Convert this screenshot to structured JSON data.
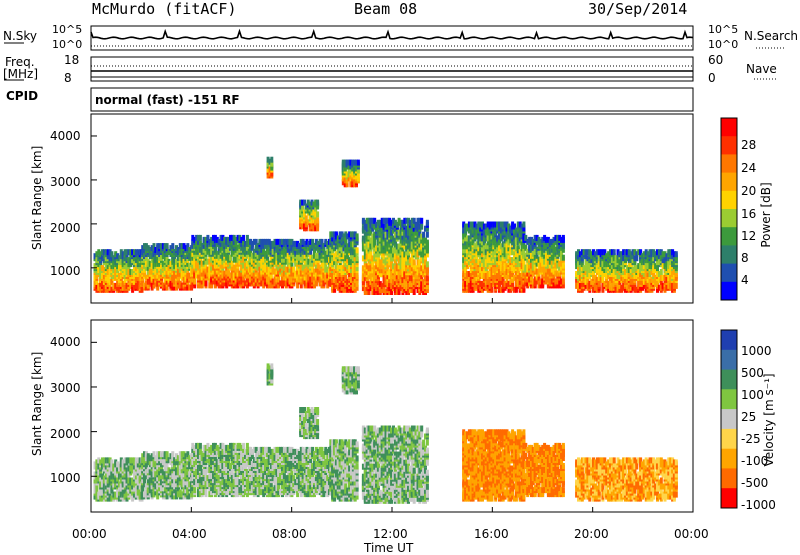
{
  "header": {
    "station": "McMurdo (fitACF)",
    "beam": "Beam 08",
    "date": "30/Sep/2014"
  },
  "summary": {
    "nsky_label": "N.Sky",
    "nsky_ticks": [
      "10^5",
      "10^0"
    ],
    "nsearch_label": "N.Search",
    "nsearch_ticks": [
      "10^5",
      "10^0"
    ],
    "freq_label": "Freq.",
    "freq_unit": "[MHz]",
    "freq_ticks": [
      "18",
      "8"
    ],
    "nave_label": "Nave",
    "nave_ticks": [
      "60",
      "0"
    ],
    "cpid_label": "CPID",
    "mode_text": "normal (fast) -151 RF"
  },
  "chart_data": [
    {
      "type": "heatmap",
      "name": "power-panel",
      "ylabel": "Slant Range [km]",
      "yticks": [
        "4000",
        "3000",
        "2000",
        "1000"
      ],
      "ylim": [
        200,
        4500
      ],
      "xlim": [
        0,
        24
      ],
      "colorbar_label": "Power [dB]",
      "colorbar_ticks": [
        "28",
        "24",
        "20",
        "16",
        "12",
        "8",
        "4"
      ],
      "colorbar_colors": [
        "#ff0000",
        "#ff3000",
        "#ff7700",
        "#ffa500",
        "#ffd200",
        "#9bcc32",
        "#3c9a3c",
        "#2d7f6a",
        "#1f4fb0",
        "#0000ff"
      ]
    },
    {
      "type": "heatmap",
      "name": "velocity-panel",
      "ylabel": "Slant Range [km]",
      "yticks": [
        "4000",
        "3000",
        "2000",
        "1000"
      ],
      "ylim": [
        200,
        4500
      ],
      "xlim": [
        0,
        24
      ],
      "colorbar_label": "Velocity [m s⁻¹]",
      "colorbar_ticks": [
        "1000",
        "500",
        "100",
        "25",
        "-25",
        "-100",
        "-500",
        "-1000"
      ],
      "colorbar_colors": [
        "#1f3fb0",
        "#3a6ea8",
        "#3e8f5a",
        "#7fc640",
        "#c8c8c8",
        "#ffd54a",
        "#ffa500",
        "#ff6a00",
        "#ff0000"
      ]
    }
  ],
  "xaxis": {
    "ticks": [
      "00:00",
      "04:00",
      "08:00",
      "12:00",
      "16:00",
      "20:00",
      "00:00"
    ],
    "label": "Time UT"
  }
}
